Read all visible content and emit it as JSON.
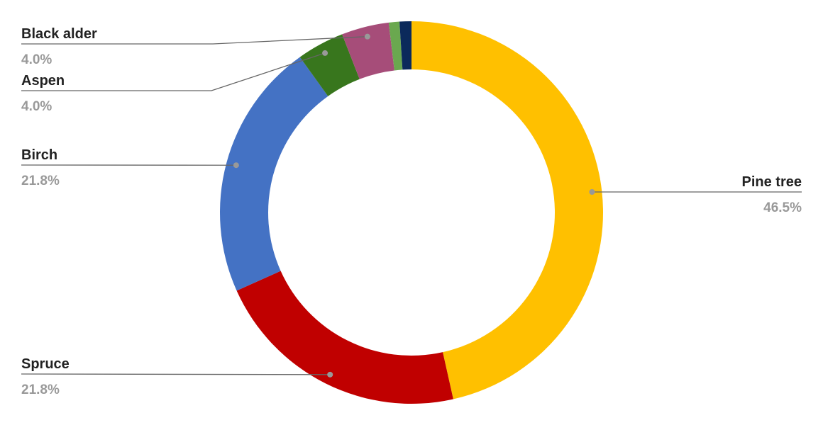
{
  "chart_data": {
    "type": "donut",
    "categories": [
      "Pine tree",
      "Spruce",
      "Birch",
      "Aspen",
      "Black alder",
      null,
      null
    ],
    "values": [
      46.5,
      21.8,
      21.8,
      4.0,
      4.0,
      0.9,
      1.0
    ],
    "value_labels": [
      "46.5%",
      "21.8%",
      "21.8%",
      "4.0%",
      "4.0%",
      null,
      null
    ],
    "colors": [
      "#ffc000",
      "#c00000",
      "#4472c4",
      "#38761d",
      "#a64d79",
      "#6aa84f",
      "#0b2a5b"
    ]
  }
}
